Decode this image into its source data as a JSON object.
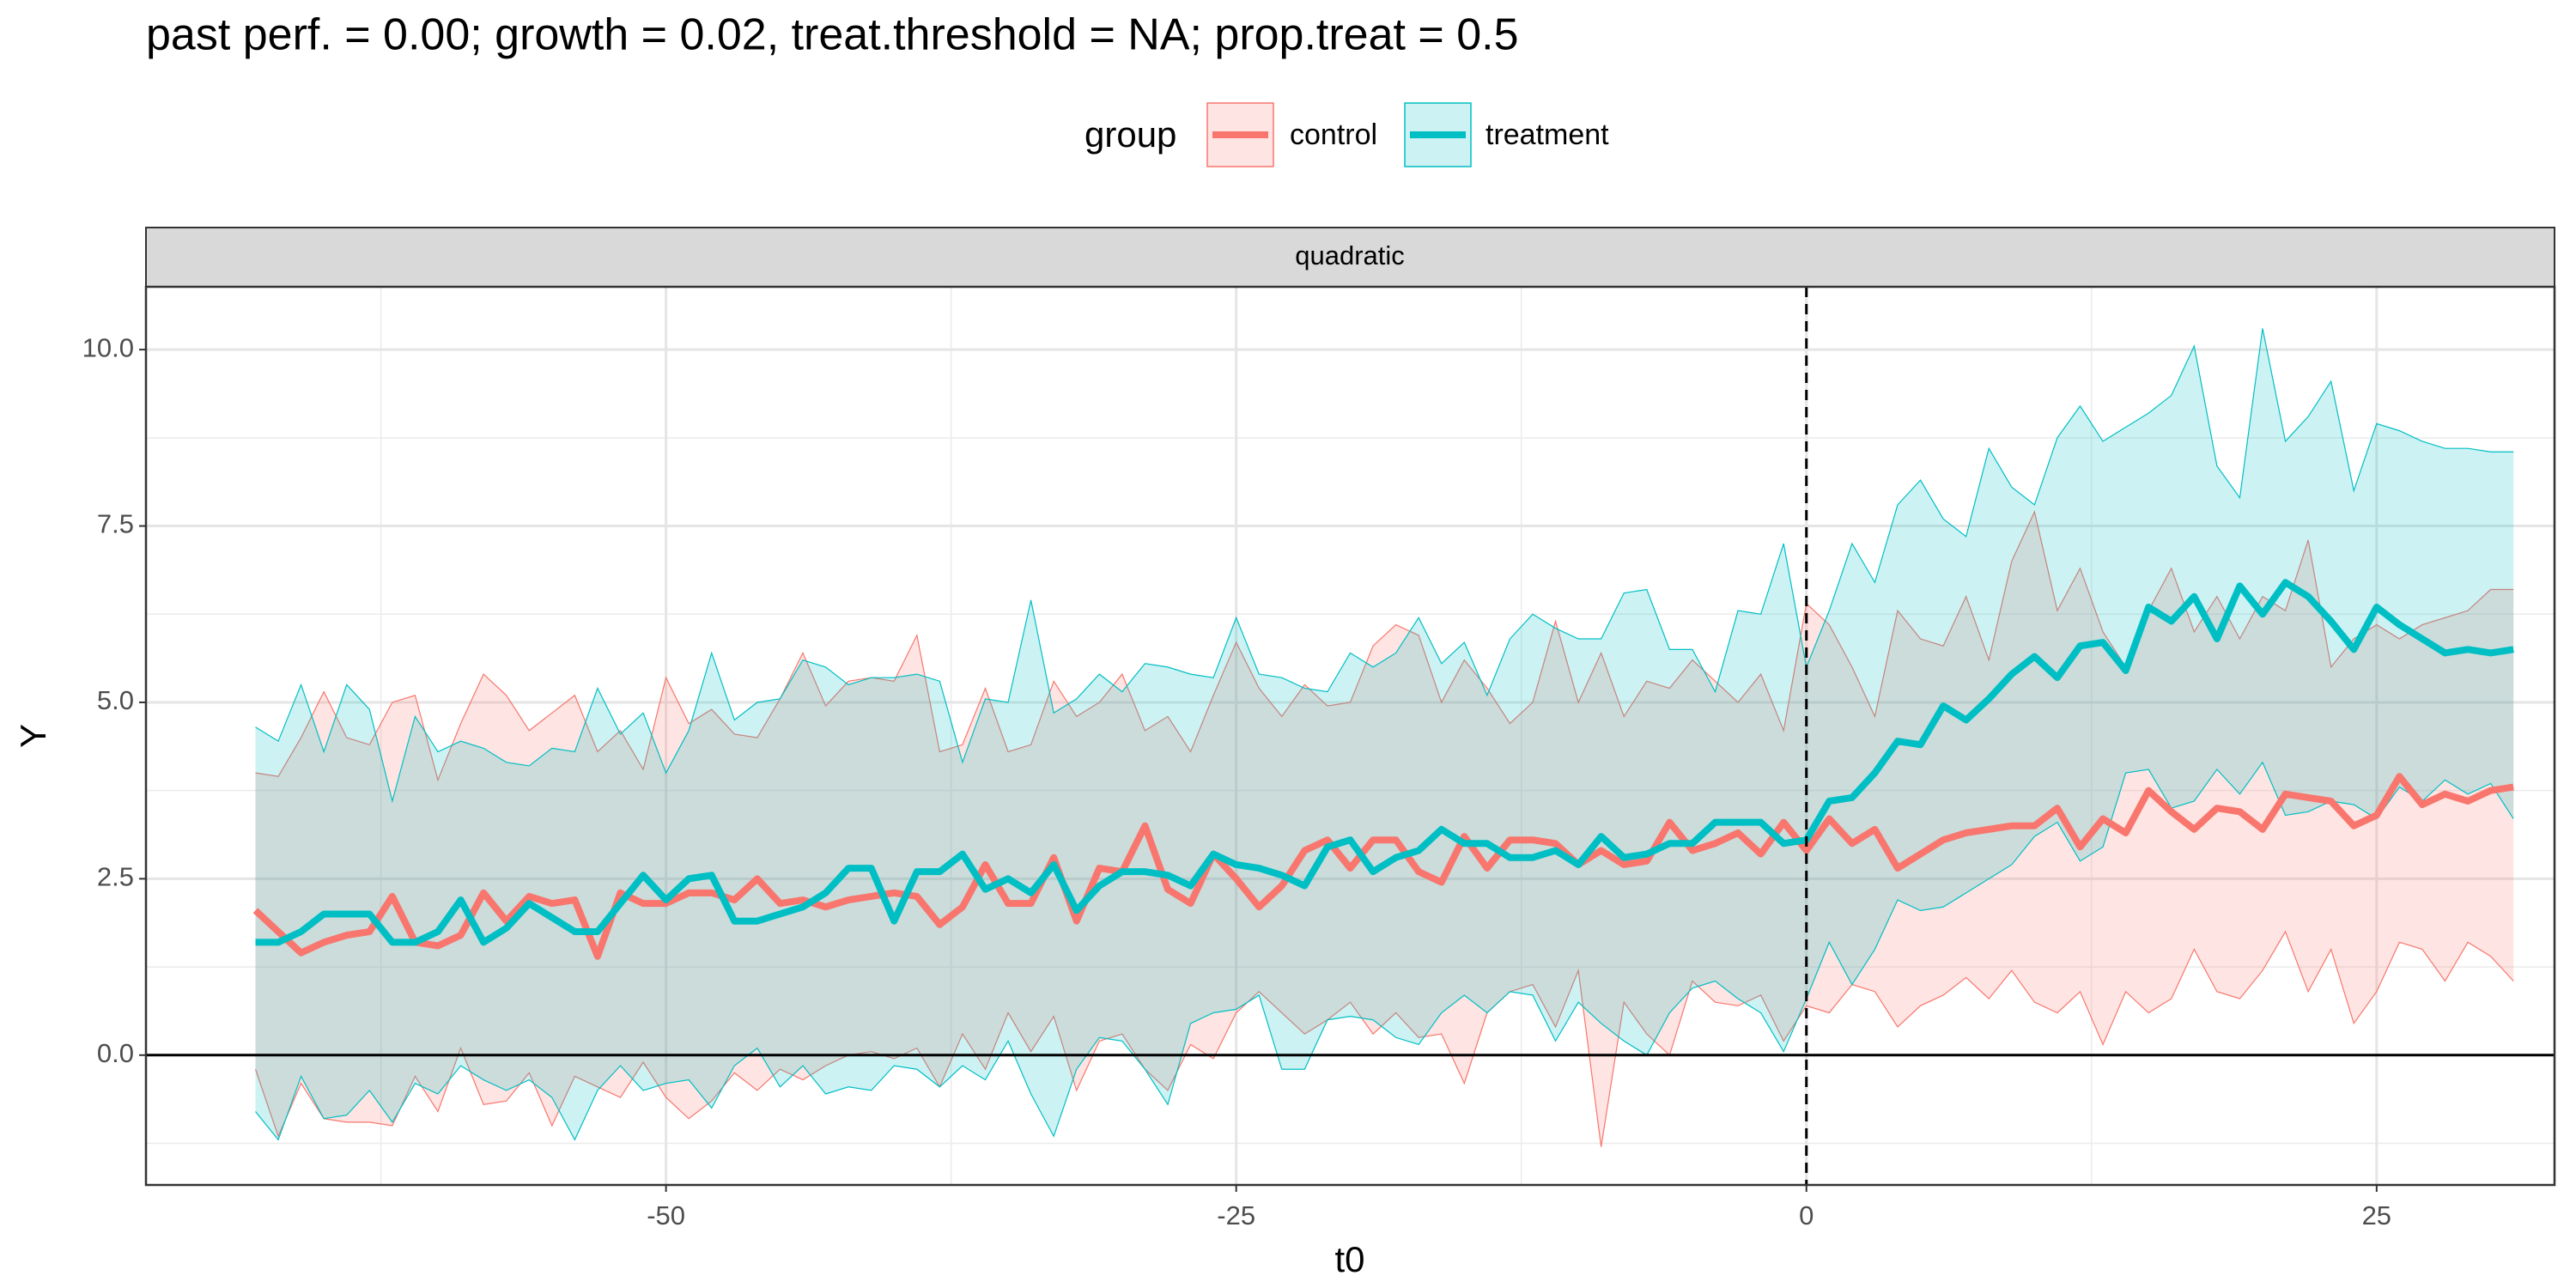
{
  "chart_data": {
    "type": "ribbon-line",
    "title": "past perf. = 0.00; growth = 0.02,  treat.threshold = NA;  prop.treat = 0.5",
    "legend_title": "group",
    "facet": "quadratic",
    "xlabel": "t0",
    "ylabel": "Y",
    "x": [
      -68,
      -67,
      -66,
      -65,
      -64,
      -63,
      -62,
      -61,
      -60,
      -59,
      -58,
      -57,
      -56,
      -55,
      -54,
      -53,
      -52,
      -51,
      -50,
      -49,
      -48,
      -47,
      -46,
      -45,
      -44,
      -43,
      -42,
      -41,
      -40,
      -39,
      -38,
      -37,
      -36,
      -35,
      -34,
      -33,
      -32,
      -31,
      -30,
      -29,
      -28,
      -27,
      -26,
      -25,
      -24,
      -23,
      -22,
      -21,
      -20,
      -19,
      -18,
      -17,
      -16,
      -15,
      -14,
      -13,
      -12,
      -11,
      -10,
      -9,
      -8,
      -7,
      -6,
      -5,
      -4,
      -3,
      -2,
      -1,
      0,
      1,
      2,
      3,
      4,
      5,
      6,
      7,
      8,
      9,
      10,
      11,
      12,
      13,
      14,
      15,
      16,
      17,
      18,
      19,
      20,
      21,
      22,
      23,
      24,
      25,
      26,
      27,
      28,
      29,
      30,
      31
    ],
    "series": [
      {
        "name": "control",
        "color": "#F8766D",
        "values": [
          2.05,
          1.75,
          1.45,
          1.6,
          1.7,
          1.75,
          2.25,
          1.6,
          1.55,
          1.7,
          2.3,
          1.9,
          2.25,
          2.15,
          2.2,
          1.4,
          2.3,
          2.15,
          2.15,
          2.3,
          2.3,
          2.2,
          2.5,
          2.15,
          2.2,
          2.1,
          2.2,
          2.25,
          2.3,
          2.25,
          1.85,
          2.1,
          2.7,
          2.15,
          2.15,
          2.8,
          1.9,
          2.65,
          2.6,
          3.25,
          2.35,
          2.15,
          2.85,
          2.5,
          2.1,
          2.4,
          2.9,
          3.05,
          2.65,
          3.05,
          3.05,
          2.6,
          2.45,
          3.1,
          2.65,
          3.05,
          3.05,
          3.0,
          2.7,
          2.9,
          2.7,
          2.75,
          3.3,
          2.9,
          3.0,
          3.15,
          2.85,
          3.3,
          2.9,
          3.35,
          3.0,
          3.2,
          2.65,
          2.85,
          3.05,
          3.15,
          3.2,
          3.25,
          3.25,
          3.5,
          2.95,
          3.35,
          3.15,
          3.75,
          3.45,
          3.2,
          3.5,
          3.45,
          3.2,
          3.7,
          3.65,
          3.6,
          3.25,
          3.4,
          3.95,
          3.55,
          3.7,
          3.6,
          3.75,
          3.8
        ],
        "upper": [
          4.0,
          3.95,
          4.5,
          5.15,
          4.5,
          4.4,
          5.0,
          5.1,
          3.9,
          4.7,
          5.4,
          5.1,
          4.6,
          4.85,
          5.1,
          4.3,
          4.6,
          4.05,
          5.35,
          4.7,
          4.9,
          4.55,
          4.5,
          5.05,
          5.7,
          4.95,
          5.3,
          5.35,
          5.3,
          5.95,
          4.3,
          4.4,
          5.2,
          4.3,
          4.4,
          5.3,
          4.8,
          5.0,
          5.4,
          4.6,
          4.8,
          4.3,
          5.1,
          5.85,
          5.2,
          4.8,
          5.25,
          4.95,
          5.0,
          5.8,
          6.1,
          5.95,
          5.0,
          5.6,
          5.2,
          4.7,
          5.0,
          6.15,
          5.0,
          5.7,
          4.8,
          5.3,
          5.2,
          5.6,
          5.3,
          5.0,
          5.4,
          4.6,
          6.4,
          6.1,
          5.5,
          4.8,
          6.3,
          5.9,
          5.8,
          6.5,
          5.6,
          7.0,
          7.7,
          6.3,
          6.9,
          6.0,
          5.5,
          6.3,
          6.9,
          6.0,
          6.5,
          5.9,
          6.5,
          6.3,
          7.3,
          5.5,
          5.9,
          6.1,
          5.9,
          6.1,
          6.2,
          6.3,
          6.6,
          6.6
        ],
        "lower": [
          -0.2,
          -1.15,
          -0.4,
          -0.9,
          -0.95,
          -0.95,
          -1.0,
          -0.3,
          -0.8,
          0.1,
          -0.7,
          -0.65,
          -0.25,
          -1.0,
          -0.3,
          -0.45,
          -0.6,
          -0.1,
          -0.6,
          -0.9,
          -0.65,
          -0.25,
          -0.5,
          -0.2,
          -0.35,
          -0.15,
          0.0,
          0.05,
          -0.05,
          0.1,
          -0.45,
          0.3,
          -0.2,
          0.6,
          0.05,
          0.55,
          -0.5,
          0.2,
          0.3,
          -0.2,
          -0.5,
          0.15,
          -0.05,
          0.6,
          0.9,
          0.6,
          0.3,
          0.5,
          0.75,
          0.3,
          0.6,
          0.25,
          0.3,
          -0.4,
          0.6,
          0.9,
          1.0,
          0.4,
          1.2,
          -1.3,
          0.75,
          0.3,
          0.0,
          1.05,
          0.75,
          0.7,
          0.85,
          0.2,
          0.7,
          0.6,
          1.0,
          0.9,
          0.4,
          0.7,
          0.85,
          1.1,
          0.8,
          1.2,
          0.75,
          0.6,
          0.9,
          0.15,
          0.9,
          0.6,
          0.8,
          1.5,
          0.9,
          0.8,
          1.2,
          1.75,
          0.9,
          1.5,
          0.45,
          0.9,
          1.6,
          1.5,
          1.05,
          1.6,
          1.4,
          1.05
        ]
      },
      {
        "name": "treatment",
        "color": "#00BFC4",
        "values": [
          1.6,
          1.6,
          1.75,
          2.0,
          2.0,
          2.0,
          1.6,
          1.6,
          1.75,
          2.2,
          1.6,
          1.8,
          2.15,
          1.95,
          1.75,
          1.75,
          2.15,
          2.55,
          2.2,
          2.5,
          2.55,
          1.9,
          1.9,
          2.0,
          2.1,
          2.3,
          2.65,
          2.65,
          1.9,
          2.6,
          2.6,
          2.85,
          2.35,
          2.5,
          2.3,
          2.7,
          2.05,
          2.4,
          2.6,
          2.6,
          2.55,
          2.4,
          2.85,
          2.7,
          2.65,
          2.55,
          2.4,
          2.95,
          3.05,
          2.6,
          2.8,
          2.9,
          3.2,
          3.0,
          3.0,
          2.8,
          2.8,
          2.9,
          2.7,
          3.1,
          2.8,
          2.85,
          3.0,
          3.0,
          3.3,
          3.3,
          3.3,
          3.0,
          3.05,
          3.6,
          3.65,
          4.0,
          4.45,
          4.4,
          4.95,
          4.75,
          5.05,
          5.4,
          5.65,
          5.35,
          5.8,
          5.85,
          5.45,
          6.35,
          6.15,
          6.5,
          5.9,
          6.65,
          6.25,
          6.7,
          6.5,
          6.15,
          5.75,
          6.35,
          6.1,
          5.9,
          5.7,
          5.75,
          5.7,
          5.75
        ],
        "upper": [
          4.65,
          4.45,
          5.25,
          4.3,
          5.25,
          4.9,
          3.6,
          4.8,
          4.3,
          4.45,
          4.35,
          4.15,
          4.1,
          4.35,
          4.3,
          5.2,
          4.55,
          4.85,
          4.0,
          4.6,
          5.7,
          4.75,
          5.0,
          5.05,
          5.6,
          5.5,
          5.25,
          5.35,
          5.35,
          5.4,
          5.3,
          4.15,
          5.05,
          5.0,
          6.45,
          4.85,
          5.05,
          5.4,
          5.15,
          5.55,
          5.5,
          5.4,
          5.35,
          6.2,
          5.4,
          5.35,
          5.2,
          5.15,
          5.7,
          5.5,
          5.7,
          6.2,
          5.55,
          5.85,
          5.1,
          5.9,
          6.25,
          6.05,
          5.9,
          5.9,
          6.55,
          6.6,
          5.75,
          5.75,
          5.15,
          6.3,
          6.25,
          7.25,
          5.5,
          6.3,
          7.25,
          6.7,
          7.8,
          8.15,
          7.6,
          7.35,
          8.6,
          8.05,
          7.8,
          8.75,
          9.2,
          8.7,
          8.9,
          9.1,
          9.35,
          10.05,
          8.35,
          7.9,
          10.3,
          8.7,
          9.05,
          9.55,
          8.0,
          8.95,
          8.85,
          8.7,
          8.6,
          8.6,
          8.55,
          8.55
        ],
        "lower": [
          -0.8,
          -1.2,
          -0.3,
          -0.9,
          -0.85,
          -0.5,
          -0.95,
          -0.4,
          -0.55,
          -0.15,
          -0.35,
          -0.5,
          -0.35,
          -0.6,
          -1.2,
          -0.5,
          -0.15,
          -0.5,
          -0.4,
          -0.35,
          -0.75,
          -0.15,
          0.1,
          -0.45,
          -0.15,
          -0.55,
          -0.45,
          -0.5,
          -0.15,
          -0.2,
          -0.45,
          -0.15,
          -0.35,
          0.2,
          -0.55,
          -1.15,
          -0.2,
          0.25,
          0.2,
          -0.2,
          -0.7,
          0.45,
          0.6,
          0.65,
          0.85,
          -0.2,
          -0.2,
          0.5,
          0.55,
          0.5,
          0.25,
          0.15,
          0.6,
          0.85,
          0.6,
          0.9,
          0.85,
          0.2,
          0.75,
          0.45,
          0.2,
          0.0,
          0.6,
          0.95,
          1.05,
          0.8,
          0.6,
          0.05,
          0.8,
          1.6,
          1.0,
          1.5,
          2.2,
          2.05,
          2.1,
          2.3,
          2.5,
          2.7,
          3.1,
          3.3,
          2.75,
          2.95,
          4.0,
          4.05,
          3.5,
          3.6,
          4.05,
          3.7,
          4.15,
          3.4,
          3.45,
          3.6,
          3.55,
          3.35,
          3.8,
          3.6,
          3.9,
          3.7,
          3.85,
          3.35
        ]
      }
    ],
    "xlim": [
      -72.8,
      32.8
    ],
    "ylim": [
      -1.84,
      10.89
    ],
    "xticks": [
      -50,
      -25,
      0,
      25
    ],
    "yticks": [
      {
        "value": 0,
        "label": "0.0"
      },
      {
        "value": 2.5,
        "label": "2.5"
      },
      {
        "value": 5,
        "label": "5.0"
      },
      {
        "value": 7.5,
        "label": "7.5"
      },
      {
        "value": 10,
        "label": "10.0"
      }
    ],
    "vline": 0,
    "hline": 0,
    "grid": true,
    "legend_position": "top"
  }
}
